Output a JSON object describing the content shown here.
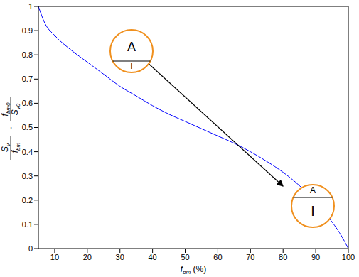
{
  "chart_data": {
    "type": "line",
    "xlabel": {
      "text": "f",
      "sub": "bm",
      "suffix": " (%)"
    },
    "ylabel": {
      "fractions": [
        {
          "num": "S",
          "num_sub": "v",
          "den": "f",
          "den_sub": "bm"
        },
        {
          "num": "f",
          "num_sub": "bm0",
          "den": "S",
          "den_sub": "v0"
        }
      ],
      "operator": "·"
    },
    "x": [
      5,
      7,
      10,
      15,
      20,
      25,
      30,
      35,
      40,
      45,
      50,
      55,
      60,
      65,
      70,
      75,
      80,
      85,
      90,
      95,
      98,
      100
    ],
    "values": [
      1.0,
      0.93,
      0.88,
      0.82,
      0.77,
      0.72,
      0.67,
      0.63,
      0.59,
      0.555,
      0.525,
      0.495,
      0.465,
      0.435,
      0.4,
      0.36,
      0.315,
      0.26,
      0.19,
      0.11,
      0.05,
      0.0
    ],
    "color": "#0000ff",
    "xlim": [
      5,
      100
    ],
    "xticks": [
      10,
      20,
      30,
      40,
      50,
      60,
      70,
      80,
      90,
      100
    ],
    "ylim": [
      0,
      1
    ],
    "yticks": [
      0,
      0.1,
      0.2,
      0.3,
      0.4,
      0.5,
      0.6,
      0.7,
      0.8,
      0.9,
      1
    ],
    "grid": false,
    "annotations": [
      {
        "upper": "A",
        "lower": "I"
      },
      {
        "upper": "A",
        "lower": "I"
      }
    ]
  }
}
